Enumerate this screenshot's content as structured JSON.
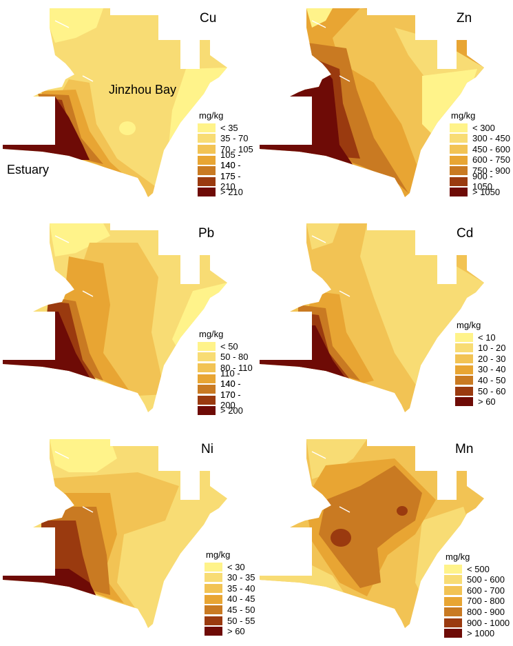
{
  "labels": {
    "bay": "Jinzhou Bay",
    "estuary": "Estuary"
  },
  "colors": [
    "#fff38a",
    "#f8dc74",
    "#f2c354",
    "#e8a533",
    "#c97a22",
    "#9a3a0f",
    "#6e0b06"
  ],
  "panels": [
    {
      "element": "Cu",
      "unit": "mg/kg",
      "classes": [
        "< 35",
        "35 - 70",
        "70 - 105",
        "105 - 140",
        "140 - 175",
        "175 - 210",
        "> 210"
      ]
    },
    {
      "element": "Zn",
      "unit": "mg/kg",
      "classes": [
        "< 300",
        "300 - 450",
        "450 - 600",
        "600 - 750",
        "750 - 900",
        "900 - 1050",
        "> 1050"
      ]
    },
    {
      "element": "Pb",
      "unit": "mg/kg",
      "classes": [
        "< 50",
        "50 - 80",
        "80 - 110",
        "110 - 140",
        "140 - 170",
        "170 - 200",
        "> 200"
      ]
    },
    {
      "element": "Cd",
      "unit": "mg/kg",
      "classes": [
        "< 10",
        "10 - 20",
        "20 - 30",
        "30 - 40",
        "40 - 50",
        "50 - 60",
        "> 60"
      ]
    },
    {
      "element": "Ni",
      "unit": "mg/kg",
      "classes": [
        "< 30",
        "30 - 35",
        "35 - 40",
        "40 - 45",
        "45 - 50",
        "50 - 55",
        "> 60"
      ]
    },
    {
      "element": "Mn",
      "unit": "mg/kg",
      "classes": [
        "< 500",
        "500 - 600",
        "600 - 700",
        "700 - 800",
        "800 - 900",
        "900 - 1000",
        "> 1000"
      ]
    }
  ]
}
